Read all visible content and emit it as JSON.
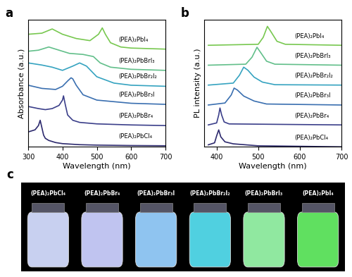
{
  "chart_data": [
    {
      "type": "line",
      "title": "a",
      "x_label": "Wavelength (nm)",
      "y_label": "Absorbance (a.u.)",
      "xlim": [
        300,
        700
      ],
      "xticks": [
        300,
        400,
        500,
        600,
        700
      ],
      "ylim": [
        0,
        6.0
      ],
      "tick_labels": "x",
      "series": [
        {
          "name": "(PEA)₂PbCl₄",
          "color": "#2d2a6e",
          "x": [
            300,
            310,
            320,
            330,
            335,
            340,
            345,
            350,
            360,
            380,
            400,
            450,
            500,
            600,
            700
          ],
          "values": [
            0.7,
            0.75,
            0.8,
            1.0,
            1.25,
            0.9,
            0.55,
            0.4,
            0.3,
            0.2,
            0.15,
            0.1,
            0.08,
            0.06,
            0.05
          ]
        },
        {
          "name": "(PEA)₂PbBr₄",
          "color": "#3b3f8a",
          "x": [
            300,
            330,
            350,
            370,
            390,
            400,
            403,
            408,
            415,
            430,
            450,
            500,
            600,
            700
          ],
          "values": [
            1.9,
            1.8,
            1.75,
            1.8,
            1.95,
            2.2,
            2.4,
            2.0,
            1.5,
            1.25,
            1.15,
            1.08,
            1.03,
            1.0
          ]
        },
        {
          "name": "(PEA)₂PbBr₃I",
          "color": "#3a6fb0",
          "x": [
            300,
            340,
            380,
            400,
            415,
            425,
            430,
            440,
            460,
            500,
            600,
            700
          ],
          "values": [
            2.9,
            2.75,
            2.7,
            2.85,
            3.1,
            3.25,
            3.2,
            2.9,
            2.45,
            2.2,
            2.05,
            2.0
          ]
        },
        {
          "name": "(PEA)₂PbBr₂I₂",
          "color": "#35a3c0",
          "x": [
            300,
            340,
            370,
            400,
            430,
            450,
            470,
            500,
            550,
            600,
            700
          ],
          "values": [
            3.95,
            3.85,
            3.75,
            3.6,
            3.8,
            3.95,
            3.8,
            3.3,
            3.0,
            2.9,
            2.85
          ]
        },
        {
          "name": "(PEA)₂PbBrI₃",
          "color": "#62bf8a",
          "x": [
            300,
            330,
            360,
            390,
            420,
            460,
            490,
            510,
            540,
            600,
            700
          ],
          "values": [
            4.5,
            4.55,
            4.7,
            4.55,
            4.4,
            4.35,
            4.25,
            3.95,
            3.75,
            3.65,
            3.6
          ]
        },
        {
          "name": "(PEA)₂PbI₄",
          "color": "#78c850",
          "x": [
            300,
            340,
            370,
            400,
            440,
            480,
            505,
            516,
            525,
            540,
            570,
            600,
            700
          ],
          "values": [
            5.3,
            5.35,
            5.55,
            5.3,
            5.1,
            5.0,
            5.3,
            5.6,
            5.3,
            4.9,
            4.7,
            4.65,
            4.6
          ]
        }
      ]
    },
    {
      "type": "line",
      "title": "b",
      "x_label": "Wavelength (nm)",
      "y_label": "PL intensity (a.u.)",
      "xlim": [
        370,
        700
      ],
      "xticks": [
        400,
        500,
        600,
        700
      ],
      "ylim": [
        0,
        6.4
      ],
      "tick_labels": "x",
      "series": [
        {
          "name": "(PEA)₂PbCl₄",
          "color": "#2d2a6e",
          "x": [
            380,
            395,
            400,
            405,
            410,
            420,
            440,
            500,
            700
          ],
          "values": [
            0.1,
            0.2,
            0.55,
            0.85,
            0.5,
            0.25,
            0.15,
            0.05,
            0.0
          ]
        },
        {
          "name": "(PEA)₂PbBr₄",
          "color": "#3b3f8a",
          "x": [
            380,
            400,
            405,
            408,
            412,
            418,
            430,
            700
          ],
          "values": [
            1.1,
            1.2,
            1.6,
            1.95,
            1.6,
            1.25,
            1.15,
            1.1
          ]
        },
        {
          "name": "(PEA)₂PbBr₃I",
          "color": "#3a6fb0",
          "x": [
            380,
            420,
            435,
            442,
            450,
            465,
            490,
            520,
            700
          ],
          "values": [
            2.1,
            2.2,
            2.6,
            2.95,
            2.85,
            2.55,
            2.3,
            2.15,
            2.1
          ]
        },
        {
          "name": "(PEA)₂PbBr₂I₂",
          "color": "#35a3c0",
          "x": [
            380,
            440,
            455,
            465,
            475,
            490,
            510,
            540,
            700
          ],
          "values": [
            3.1,
            3.2,
            3.6,
            4.0,
            3.85,
            3.5,
            3.25,
            3.12,
            3.1
          ]
        },
        {
          "name": "(PEA)₂PbBrI₃",
          "color": "#62bf8a",
          "x": [
            380,
            470,
            485,
            497,
            507,
            520,
            540,
            700
          ],
          "values": [
            4.1,
            4.15,
            4.5,
            5.0,
            4.7,
            4.3,
            4.15,
            4.1
          ]
        },
        {
          "name": "(PEA)₂PbI₄",
          "color": "#78c850",
          "x": [
            380,
            500,
            512,
            522,
            530,
            545,
            565,
            700
          ],
          "values": [
            5.1,
            5.15,
            5.5,
            6.05,
            5.8,
            5.3,
            5.15,
            5.1
          ]
        }
      ]
    }
  ],
  "photo": {
    "title": "c",
    "labels": [
      "(PEA)₂PbCl₄",
      "(PEA)₂PbBr₄",
      "(PEA)₂PbBr₃I",
      "(PEA)₂PbBr₂I₂",
      "(PEA)₂PbBrI₃",
      "(PEA)₂PbI₄"
    ],
    "colors": [
      "#c8d0f0",
      "#c0c4f0",
      "#8fc4f0",
      "#50d0e0",
      "#90e8a0",
      "#60e060"
    ]
  }
}
